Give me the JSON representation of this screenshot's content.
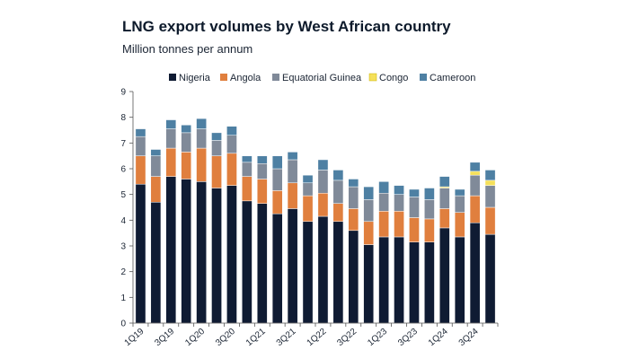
{
  "chart_data": {
    "type": "bar",
    "stacked": true,
    "title": "LNG export volumes by West African country",
    "subtitle": "Million tonnes per annum",
    "ylim": [
      0,
      9
    ],
    "yticks": [
      "0",
      "1",
      "2",
      "3",
      "4",
      "5",
      "6",
      "7",
      "8",
      "9"
    ],
    "xtick_labels": [
      "1Q19",
      "3Q19",
      "1Q20",
      "3Q20",
      "1Q21",
      "3Q21",
      "1Q22",
      "3Q22",
      "1Q23",
      "3Q23",
      "1Q24",
      "3Q24"
    ],
    "categories": [
      "1Q19",
      "2Q19",
      "3Q19",
      "4Q19",
      "1Q20",
      "2Q20",
      "3Q20",
      "4Q20",
      "1Q21",
      "2Q21",
      "3Q21",
      "4Q21",
      "1Q22",
      "2Q22",
      "3Q22",
      "4Q22",
      "1Q23",
      "2Q23",
      "3Q23",
      "4Q23",
      "1Q24",
      "2Q24",
      "3Q24",
      "4Q24"
    ],
    "series": [
      {
        "name": "Nigeria",
        "color": "#0f1b33",
        "values": [
          5.4,
          4.7,
          5.7,
          5.6,
          5.5,
          5.25,
          5.35,
          4.75,
          4.65,
          4.25,
          4.45,
          3.95,
          4.15,
          3.95,
          3.6,
          3.05,
          3.35,
          3.35,
          3.15,
          3.15,
          3.7,
          3.35,
          3.9,
          3.45
        ]
      },
      {
        "name": "Angola",
        "color": "#e07f3e",
        "values": [
          1.1,
          1.0,
          1.1,
          1.05,
          1.3,
          1.25,
          1.25,
          0.95,
          0.95,
          0.9,
          1.0,
          1.0,
          0.9,
          0.7,
          0.85,
          0.9,
          1.0,
          1.0,
          0.95,
          0.9,
          0.75,
          0.95,
          1.05,
          1.05
        ]
      },
      {
        "name": "Equatorial Guinea",
        "color": "#808a99",
        "values": [
          0.75,
          0.8,
          0.75,
          0.75,
          0.75,
          0.6,
          0.7,
          0.55,
          0.6,
          0.85,
          0.9,
          0.5,
          0.9,
          0.9,
          0.85,
          0.85,
          0.7,
          0.65,
          0.8,
          0.75,
          0.8,
          0.65,
          0.8,
          0.85
        ]
      },
      {
        "name": "Congo",
        "color": "#f5e05a",
        "values": [
          0,
          0,
          0,
          0,
          0,
          0,
          0,
          0,
          0,
          0,
          0,
          0,
          0,
          0,
          0,
          0,
          0,
          0,
          0,
          0,
          0.05,
          0,
          0.15,
          0.2
        ]
      },
      {
        "name": "Cameroon",
        "color": "#4e80a3",
        "values": [
          0.3,
          0.25,
          0.35,
          0.3,
          0.4,
          0.3,
          0.35,
          0.25,
          0.3,
          0.5,
          0.3,
          0.3,
          0.4,
          0.4,
          0.3,
          0.5,
          0.45,
          0.35,
          0.3,
          0.45,
          0.4,
          0.25,
          0.35,
          0.4
        ]
      }
    ]
  }
}
